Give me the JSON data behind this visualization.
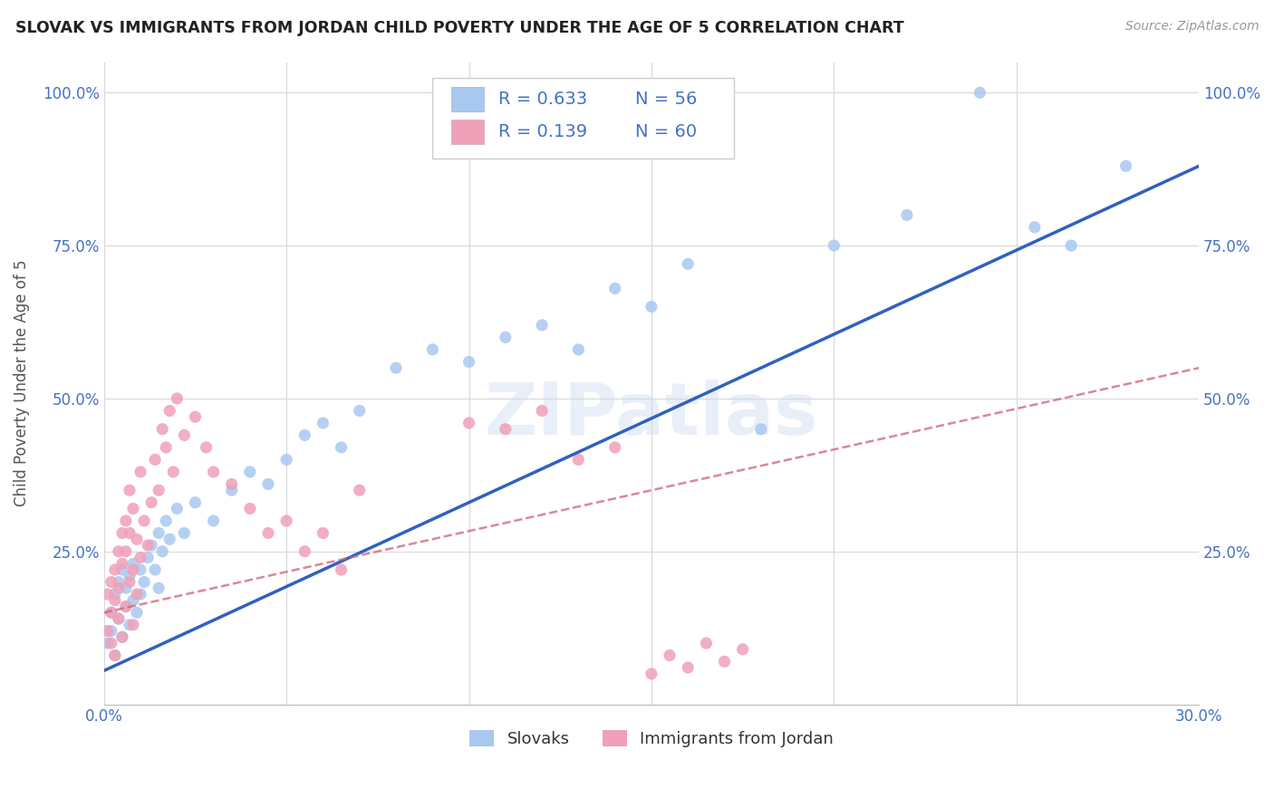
{
  "title": "SLOVAK VS IMMIGRANTS FROM JORDAN CHILD POVERTY UNDER THE AGE OF 5 CORRELATION CHART",
  "source": "Source: ZipAtlas.com",
  "ylabel": "Child Poverty Under the Age of 5",
  "slovak_R": "0.633",
  "slovak_N": "56",
  "jordan_R": "0.139",
  "jordan_N": "60",
  "xmin": 0.0,
  "xmax": 0.3,
  "ymin": 0.0,
  "ymax": 1.05,
  "x_ticks": [
    0.0,
    0.05,
    0.1,
    0.15,
    0.2,
    0.25,
    0.3
  ],
  "y_ticks": [
    0.0,
    0.25,
    0.5,
    0.75,
    1.0
  ],
  "y_tick_labels": [
    "",
    "25.0%",
    "50.0%",
    "75.0%",
    "100.0%"
  ],
  "color_slovak": "#a8c8f0",
  "color_jordan": "#f0a0b8",
  "trendline_slovak_color": "#3060c0",
  "trendline_jordan_color": "#d06070",
  "background_color": "#ffffff",
  "grid_color": "#d8d8d8",
  "watermark": "ZIPatlas",
  "slovak_x": [
    0.001,
    0.002,
    0.002,
    0.003,
    0.003,
    0.004,
    0.004,
    0.005,
    0.005,
    0.006,
    0.006,
    0.007,
    0.007,
    0.008,
    0.008,
    0.009,
    0.01,
    0.01,
    0.011,
    0.012,
    0.013,
    0.014,
    0.015,
    0.015,
    0.016,
    0.017,
    0.018,
    0.02,
    0.022,
    0.025,
    0.03,
    0.035,
    0.04,
    0.045,
    0.05,
    0.055,
    0.06,
    0.065,
    0.07,
    0.08,
    0.09,
    0.1,
    0.11,
    0.12,
    0.13,
    0.14,
    0.15,
    0.16,
    0.17,
    0.18,
    0.2,
    0.22,
    0.24,
    0.255,
    0.265,
    0.28
  ],
  "slovak_y": [
    0.1,
    0.12,
    0.15,
    0.08,
    0.18,
    0.14,
    0.2,
    0.11,
    0.22,
    0.16,
    0.19,
    0.13,
    0.21,
    0.17,
    0.23,
    0.15,
    0.18,
    0.22,
    0.2,
    0.24,
    0.26,
    0.22,
    0.19,
    0.28,
    0.25,
    0.3,
    0.27,
    0.32,
    0.28,
    0.33,
    0.3,
    0.35,
    0.38,
    0.36,
    0.4,
    0.44,
    0.46,
    0.42,
    0.48,
    0.55,
    0.58,
    0.56,
    0.6,
    0.62,
    0.58,
    0.68,
    0.65,
    0.72,
    1.0,
    0.45,
    0.75,
    0.8,
    1.0,
    0.78,
    0.75,
    0.88
  ],
  "jordan_x": [
    0.001,
    0.001,
    0.002,
    0.002,
    0.002,
    0.003,
    0.003,
    0.003,
    0.004,
    0.004,
    0.004,
    0.005,
    0.005,
    0.005,
    0.006,
    0.006,
    0.006,
    0.007,
    0.007,
    0.007,
    0.008,
    0.008,
    0.008,
    0.009,
    0.009,
    0.01,
    0.01,
    0.011,
    0.012,
    0.013,
    0.014,
    0.015,
    0.016,
    0.017,
    0.018,
    0.019,
    0.02,
    0.022,
    0.025,
    0.028,
    0.03,
    0.035,
    0.04,
    0.045,
    0.05,
    0.055,
    0.06,
    0.065,
    0.07,
    0.1,
    0.11,
    0.12,
    0.13,
    0.14,
    0.15,
    0.155,
    0.16,
    0.165,
    0.17,
    0.175
  ],
  "jordan_y": [
    0.12,
    0.18,
    0.1,
    0.2,
    0.15,
    0.08,
    0.22,
    0.17,
    0.14,
    0.25,
    0.19,
    0.11,
    0.28,
    0.23,
    0.16,
    0.3,
    0.25,
    0.2,
    0.35,
    0.28,
    0.13,
    0.32,
    0.22,
    0.18,
    0.27,
    0.24,
    0.38,
    0.3,
    0.26,
    0.33,
    0.4,
    0.35,
    0.45,
    0.42,
    0.48,
    0.38,
    0.5,
    0.44,
    0.47,
    0.42,
    0.38,
    0.36,
    0.32,
    0.28,
    0.3,
    0.25,
    0.28,
    0.22,
    0.35,
    0.46,
    0.45,
    0.48,
    0.4,
    0.42,
    0.05,
    0.08,
    0.06,
    0.1,
    0.07,
    0.09
  ],
  "slovak_trend_x0": 0.0,
  "slovak_trend_y0": 0.055,
  "slovak_trend_x1": 0.3,
  "slovak_trend_y1": 0.88,
  "jordan_trend_x0": 0.0,
  "jordan_trend_y0": 0.15,
  "jordan_trend_x1": 0.3,
  "jordan_trend_y1": 0.55
}
